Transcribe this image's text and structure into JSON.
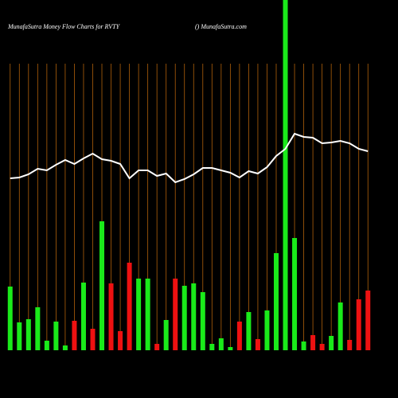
{
  "chart_data": {
    "type": "bar",
    "title": "MunafaSutra  Money Flow  Charts for RVTY",
    "subtitle": "() MunafaSutra.com",
    "categories": [
      null,
      null,
      null,
      null,
      null,
      null,
      null,
      null,
      null,
      null,
      null,
      null,
      null,
      null,
      null,
      null,
      null,
      null,
      null,
      null,
      null,
      null,
      null,
      null,
      null,
      null,
      null,
      null,
      null,
      null,
      null,
      null,
      null,
      null,
      null,
      null,
      null,
      null,
      null,
      null
    ],
    "ylim": [
      0,
      440
    ],
    "series": [
      {
        "values": [
          80,
          35,
          39,
          54,
          12,
          36,
          6,
          37,
          85,
          27,
          162,
          84,
          24,
          110,
          90,
          90,
          8,
          38,
          90,
          81,
          84,
          73,
          8,
          15,
          4,
          36,
          48,
          14,
          50,
          122,
          440,
          141,
          11,
          19,
          8,
          18,
          60,
          13,
          64,
          75
        ],
        "colors": [
          "#1aea1a",
          "#1aea1a",
          "#1aea1a",
          "#1aea1a",
          "#1aea1a",
          "#1aea1a",
          "#1aea1a",
          "#ee1111",
          "#1aea1a",
          "#ee1111",
          "#1aea1a",
          "#ee1111",
          "#ee1111",
          "#ee1111",
          "#1aea1a",
          "#1aea1a",
          "#ee1111",
          "#1aea1a",
          "#ee1111",
          "#1aea1a",
          "#1aea1a",
          "#1aea1a",
          "#1aea1a",
          "#1aea1a",
          "#1aea1a",
          "#ee1111",
          "#1aea1a",
          "#ee1111",
          "#1aea1a",
          "#1aea1a",
          "#1aea1a",
          "#1aea1a",
          "#1aea1a",
          "#ee1111",
          "#ee1111",
          "#1aea1a",
          "#1aea1a",
          "#ee1111",
          "#ee1111",
          "#ee1111"
        ]
      },
      {
        "type": "line",
        "color": "#ffffff",
        "values": [
          216,
          217,
          221,
          228,
          226,
          233,
          239,
          234,
          241,
          247,
          240,
          238,
          234,
          216,
          226,
          226,
          219,
          222,
          211,
          215,
          221,
          229,
          229,
          226,
          223,
          217,
          225,
          222,
          230,
          244,
          253,
          272,
          268,
          267,
          260,
          261,
          263,
          260,
          253,
          250
        ]
      }
    ]
  }
}
